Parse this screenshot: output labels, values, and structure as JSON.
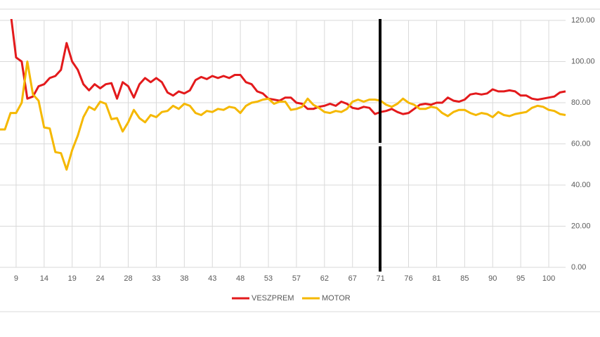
{
  "chart_data": {
    "type": "line",
    "categories": [
      null,
      null,
      null,
      "9",
      null,
      null,
      null,
      null,
      "14",
      null,
      null,
      null,
      null,
      "19",
      null,
      null,
      null,
      null,
      "24",
      null,
      null,
      null,
      null,
      "28",
      null,
      null,
      null,
      null,
      "33",
      null,
      null,
      null,
      null,
      "38",
      null,
      null,
      null,
      null,
      "43",
      null,
      null,
      null,
      null,
      "48",
      null,
      null,
      null,
      null,
      "53",
      null,
      null,
      null,
      null,
      "57",
      null,
      null,
      null,
      null,
      "62",
      null,
      null,
      null,
      null,
      "67",
      null,
      null,
      null,
      null,
      "71",
      null,
      null,
      null,
      null,
      "76",
      null,
      null,
      null,
      null,
      "81",
      null,
      null,
      null,
      null,
      "85",
      null,
      null,
      null,
      null,
      "90",
      null,
      null,
      null,
      null,
      "95",
      null,
      null,
      null,
      null,
      "100",
      null,
      null,
      null
    ],
    "series": [
      {
        "name": "VESZPREM",
        "color": "#e31a1c",
        "values": [
          null,
          null,
          124,
          102,
          100,
          82,
          83,
          88,
          89,
          92,
          93,
          96,
          109,
          100,
          96,
          89,
          86,
          89,
          87,
          89,
          89.5,
          82,
          90,
          88,
          82.5,
          89,
          92,
          90,
          92,
          90,
          85,
          83.5,
          85.5,
          84.5,
          86,
          91,
          92.5,
          91.5,
          93,
          92,
          93,
          92,
          93.5,
          93.5,
          90,
          89,
          85.5,
          84.5,
          82,
          81.5,
          81,
          82.5,
          82.5,
          80,
          79.5,
          77,
          77,
          78,
          78.5,
          79.5,
          78.5,
          80.5,
          79.5,
          77.5,
          77,
          78,
          77.5,
          74.5,
          75.5,
          76,
          77,
          75.5,
          74.5,
          75,
          77,
          79,
          79.5,
          79,
          80,
          80,
          82.5,
          81,
          80.5,
          81.5,
          84,
          84.5,
          84,
          84.5,
          86.5,
          85.5,
          85.5,
          86,
          85.5,
          83.5,
          83.5,
          82,
          81.5,
          82,
          82.5,
          83,
          85,
          85.5
        ]
      },
      {
        "name": "MOTOR",
        "color": "#f5b800",
        "values": [
          67,
          67,
          75,
          75,
          80,
          100,
          84,
          81,
          68,
          67.5,
          56,
          55.5,
          47.5,
          57,
          64,
          73,
          78,
          76.5,
          80.5,
          79.5,
          72,
          72.5,
          66,
          70.5,
          76.5,
          72.5,
          70.5,
          74,
          73,
          75.5,
          76,
          78.5,
          77,
          79.5,
          78.5,
          75,
          74,
          76,
          75.5,
          77,
          76.5,
          78,
          77.5,
          75,
          78.5,
          80,
          80.5,
          81.5,
          82,
          79.5,
          80.5,
          80.5,
          76.5,
          77,
          78,
          82,
          79,
          77.5,
          75.5,
          75,
          76,
          75.5,
          77,
          80.5,
          81.5,
          80.5,
          81.5,
          81.5,
          81,
          79,
          78,
          79.5,
          82,
          80,
          79,
          77,
          77,
          78,
          77.5,
          75,
          73.5,
          75.5,
          76.5,
          76.5,
          75,
          74,
          75,
          74.5,
          73,
          75.5,
          74,
          73.5,
          74.5,
          75,
          75.5,
          77.5,
          78.5,
          78,
          76.5,
          76,
          74.5,
          74
        ]
      }
    ],
    "ylim": [
      0,
      120
    ],
    "yticks": [
      {
        "value": 0,
        "label": "0.00"
      },
      {
        "value": 20,
        "label": "20.00"
      },
      {
        "value": 40,
        "label": "40.00"
      },
      {
        "value": 60,
        "label": "60.00"
      },
      {
        "value": 80,
        "label": "80.00"
      },
      {
        "value": 100,
        "label": "100.00"
      },
      {
        "value": 120,
        "label": "120.00"
      }
    ],
    "grid": true
  }
}
